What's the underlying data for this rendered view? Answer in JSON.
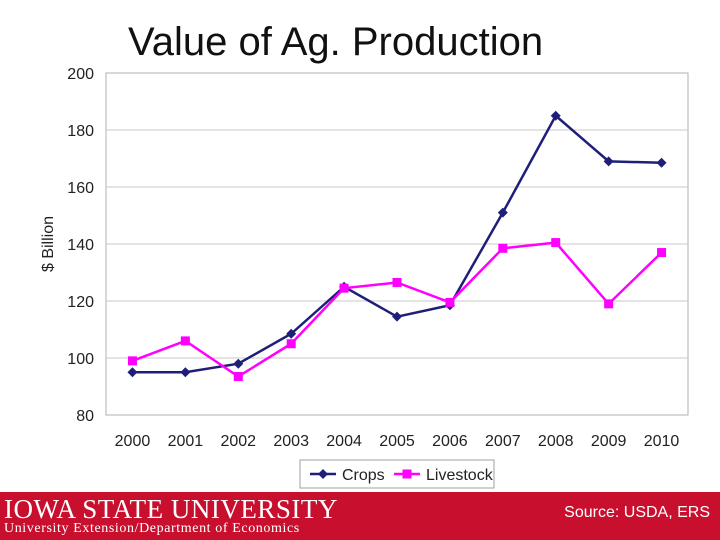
{
  "chart_data": {
    "type": "line",
    "title": "Value of Ag. Production",
    "xlabel": "",
    "ylabel": "$ Billion",
    "ylim": [
      80,
      200
    ],
    "yticks": [
      80,
      100,
      120,
      140,
      160,
      180,
      200
    ],
    "categories": [
      "2000",
      "2001",
      "2002",
      "2003",
      "2004",
      "2005",
      "2006",
      "2007",
      "2008",
      "2009",
      "2010"
    ],
    "series": [
      {
        "name": "Crops",
        "color": "#1f1f7a",
        "marker": "diamond",
        "values": [
          95,
          95,
          98,
          108.5,
          125,
          114.5,
          118.5,
          151,
          185,
          169,
          168.5
        ]
      },
      {
        "name": "Livestock",
        "color": "#ff00ff",
        "marker": "square",
        "values": [
          99,
          106,
          93.5,
          105,
          124.5,
          126.5,
          119.5,
          138.5,
          140.5,
          119,
          137
        ]
      }
    ],
    "legend": "bottom"
  },
  "footer": {
    "logo_text": "IOWA STATE UNIVERSITY",
    "department": "University Extension/Department of Economics",
    "source": "Source: USDA, ERS"
  }
}
